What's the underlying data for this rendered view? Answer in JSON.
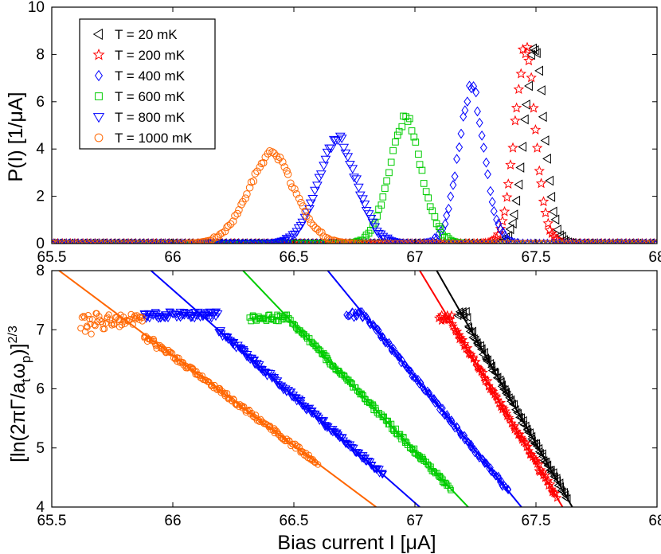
{
  "chart_data": [
    {
      "type": "scatter",
      "panel": "top",
      "xlim": [
        65.5,
        68
      ],
      "ylim": [
        0,
        10
      ],
      "xticks": [
        "65.5",
        "66",
        "66.5",
        "67",
        "67.5",
        "68"
      ],
      "yticks": [
        "0",
        "2",
        "4",
        "6",
        "8",
        "10"
      ],
      "ylabel": "P(I) [1/μA]",
      "legend_position": "top-left",
      "series": [
        {
          "name": "T = 20 mK",
          "marker": "triangle-left",
          "color": "#000000",
          "center": 67.5,
          "sigma": 0.045,
          "peak": 8.5
        },
        {
          "name": "T = 200 mK",
          "marker": "star",
          "color": "#ff0000",
          "center": 67.46,
          "sigma": 0.048,
          "peak": 8.35
        },
        {
          "name": "T = 400 mK",
          "marker": "diamond",
          "color": "#0000ff",
          "center": 67.24,
          "sigma": 0.058,
          "peak": 6.75
        },
        {
          "name": "T = 600 mK",
          "marker": "square",
          "color": "#00cc00",
          "center": 66.97,
          "sigma": 0.073,
          "peak": 5.35
        },
        {
          "name": "T = 800 mK",
          "marker": "triangle-down",
          "color": "#0000ff",
          "center": 66.69,
          "sigma": 0.087,
          "peak": 4.45
        },
        {
          "name": "T = 1000 mK",
          "marker": "circle",
          "color": "#ff6600",
          "center": 66.42,
          "sigma": 0.105,
          "peak": 3.85
        }
      ]
    },
    {
      "type": "scatter",
      "panel": "bottom",
      "xlim": [
        65.5,
        68
      ],
      "ylim": [
        4,
        8
      ],
      "xticks": [
        "65.5",
        "66",
        "66.5",
        "67",
        "67.5",
        "68"
      ],
      "yticks": [
        "4",
        "5",
        "6",
        "7",
        "8"
      ],
      "xlabel": "Bias current I [μA]",
      "ylabel": "[ln(2πΓ/a_t ω_p)]^{2/3}",
      "fit_lines": [
        {
          "color": "#000000",
          "x": [
            67.09,
            67.65
          ],
          "y": [
            8.0,
            4.0
          ]
        },
        {
          "color": "#ff0000",
          "x": [
            67.02,
            67.61
          ],
          "y": [
            8.0,
            4.0
          ]
        },
        {
          "color": "#0000ff",
          "x": [
            66.64,
            67.44
          ],
          "y": [
            8.0,
            4.0
          ]
        },
        {
          "color": "#00cc00",
          "x": [
            66.29,
            67.22
          ],
          "y": [
            8.0,
            4.0
          ]
        },
        {
          "color": "#0000ff",
          "x": [
            65.91,
            67.02
          ],
          "y": [
            8.0,
            4.0
          ]
        },
        {
          "color": "#ff6600",
          "x": [
            65.53,
            66.84
          ],
          "y": [
            8.0,
            4.0
          ]
        }
      ],
      "scatter_series": [
        {
          "marker": "triangle-left",
          "color": "#000000",
          "x_start": 67.22,
          "x_end": 67.63,
          "y_top": 7.25,
          "plateau_start": 67.18,
          "noise": 0.08
        },
        {
          "marker": "star",
          "color": "#ff0000",
          "x_start": 67.15,
          "x_end": 67.59,
          "y_top": 7.2,
          "plateau_start": 67.1,
          "noise": 0.08
        },
        {
          "marker": "diamond",
          "color": "#0000ff",
          "x_start": 66.79,
          "x_end": 67.39,
          "y_top": 7.25,
          "plateau_start": 66.72,
          "noise": 0.08
        },
        {
          "marker": "square",
          "color": "#00cc00",
          "x_start": 66.47,
          "x_end": 67.15,
          "y_top": 7.2,
          "plateau_start": 66.32,
          "noise": 0.07
        },
        {
          "marker": "triangle-down",
          "color": "#0000ff",
          "x_start": 66.19,
          "x_end": 66.87,
          "y_top": 7.25,
          "plateau_start": 65.88,
          "noise": 0.08
        },
        {
          "marker": "circle",
          "color": "#ff6600",
          "x_start": 65.88,
          "x_end": 66.6,
          "y_top": 7.25,
          "plateau_start": 65.62,
          "noise": 0.08
        }
      ]
    }
  ]
}
